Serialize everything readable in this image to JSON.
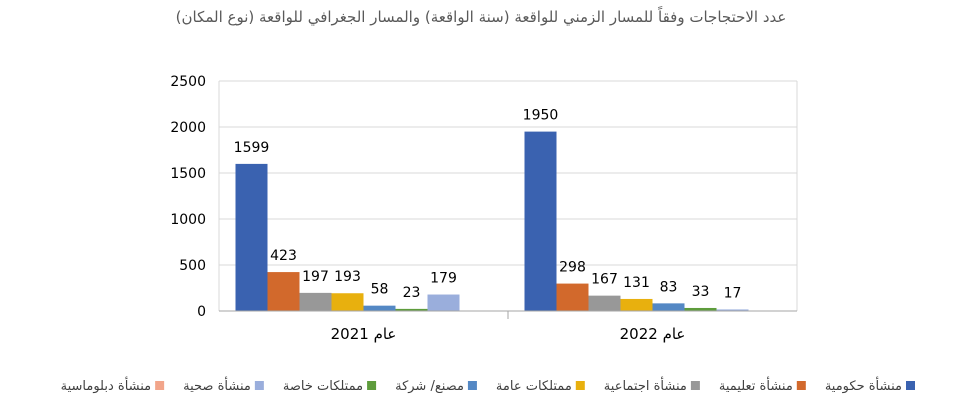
{
  "chart_data": {
    "type": "bar",
    "title": "عدد الاحتجاجات وفقاً للمسار الزمني للواقعة (سنة الواقعة) والمسار الجغرافي للواقعة (نوع المكان)",
    "categories": [
      "عام 2021",
      "عام 2022"
    ],
    "series": [
      {
        "name": "منشأة حكومية",
        "values": [
          1599,
          1950
        ],
        "color": "#3A62B0",
        "labels": [
          "1599",
          "1950"
        ]
      },
      {
        "name": "منشأة تعليمية",
        "values": [
          423,
          298
        ],
        "color": "#D2692C",
        "labels": [
          "423",
          "298"
        ]
      },
      {
        "name": "منشأة اجتماعية",
        "values": [
          197,
          167
        ],
        "color": "#989898",
        "labels": [
          "197",
          "167"
        ]
      },
      {
        "name": "ممتلكات عامة",
        "values": [
          193,
          131
        ],
        "color": "#E8B00E",
        "labels": [
          "193",
          "131"
        ]
      },
      {
        "name": "مصنع/ شركة",
        "values": [
          58,
          83
        ],
        "color": "#5488C4",
        "labels": [
          "58",
          "83"
        ]
      },
      {
        "name": "ممتلكات خاصة",
        "values": [
          23,
          33
        ],
        "color": "#5E9C3C",
        "labels": [
          "23",
          "33"
        ]
      },
      {
        "name": "منشأة صحية",
        "values": [
          179,
          17
        ],
        "color": "#9AAEDC",
        "labels": [
          "179",
          "17"
        ]
      },
      {
        "name": "منشأة دبلوماسية",
        "values": [
          0,
          4
        ],
        "color": "#F2A58A",
        "labels": [
          "",
          ""
        ]
      }
    ],
    "yticks": [
      "0",
      "500",
      "1000",
      "1500",
      "2000",
      "2500"
    ],
    "ylim": [
      0,
      2500
    ],
    "grid": true,
    "legend": "bottom"
  }
}
